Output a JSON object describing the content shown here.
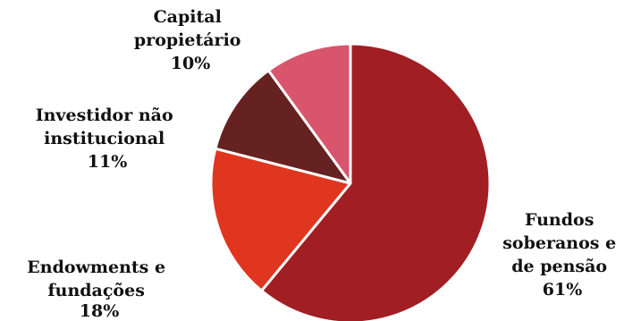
{
  "chart_data": {
    "type": "pie",
    "slices": [
      {
        "label_lines": [
          "Fundos",
          "soberanos e",
          "de pensão"
        ],
        "value": 61,
        "value_label": "61%",
        "color": "#A11E22"
      },
      {
        "label_lines": [
          "Endowments e",
          "fundações"
        ],
        "value": 18,
        "value_label": "18%",
        "color": "#E0351F"
      },
      {
        "label_lines": [
          "Investidor não",
          "institucional"
        ],
        "value": 11,
        "value_label": "11%",
        "color": "#652220"
      },
      {
        "label_lines": [
          "Capital",
          "propietário"
        ],
        "value": 10,
        "value_label": "10%",
        "color": "#D9556B"
      }
    ],
    "start_angle_deg": 0,
    "direction": "clockwise",
    "slice_separator_color": "#ffffff"
  }
}
